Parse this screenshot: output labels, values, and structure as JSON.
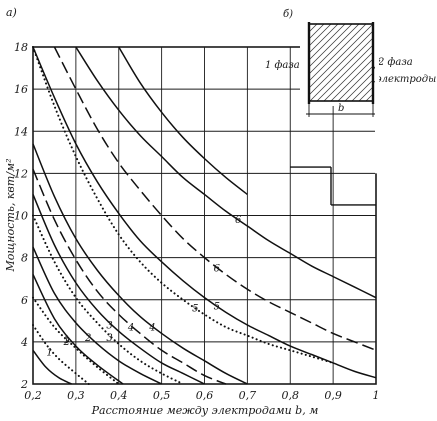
{
  "chart_data": {
    "type": "line",
    "panel_label": "а)",
    "xlabel": "Расстояние между электродами b, м",
    "ylabel": "Мощность, квт/м²",
    "xlim": [
      0.2,
      1.0
    ],
    "ylim": [
      2,
      18
    ],
    "grid": true,
    "x_tick_labels": [
      "0,2",
      "0,3",
      "0,4",
      "0,5",
      "0,6",
      "0,7",
      "0,8",
      "0,9",
      "1"
    ],
    "y_tick_labels": [
      "2",
      "4",
      "6",
      "8",
      "10",
      "12",
      "14",
      "16",
      "18"
    ],
    "series": [
      {
        "label": "1",
        "style": "dotted",
        "x": [
          0.2,
          0.23,
          0.26,
          0.3,
          0.33
        ],
        "y": [
          4.8,
          3.9,
          3.2,
          2.5,
          2.0
        ]
      },
      {
        "label": "2",
        "style": "dotted",
        "x": [
          0.2,
          0.25,
          0.3,
          0.35,
          0.4
        ],
        "y": [
          6.1,
          4.7,
          3.7,
          2.8,
          2.0
        ]
      },
      {
        "label": "1",
        "style": "solid",
        "x": [
          0.2,
          0.25,
          0.3,
          0.35,
          0.41
        ],
        "y": [
          7.2,
          5.1,
          3.8,
          2.9,
          2.0
        ]
      },
      {
        "label": "2",
        "style": "solid",
        "x": [
          0.2,
          0.25,
          0.3,
          0.35,
          0.4,
          0.45,
          0.5
        ],
        "y": [
          8.5,
          6.3,
          4.9,
          3.9,
          3.1,
          2.5,
          2.0
        ]
      },
      {
        "label": "3",
        "style": "dotted",
        "x": [
          0.2,
          0.25,
          0.3,
          0.35,
          0.4,
          0.45,
          0.5,
          0.55
        ],
        "y": [
          10.0,
          7.8,
          6.1,
          4.9,
          3.9,
          3.1,
          2.5,
          2.0
        ]
      },
      {
        "label": "3",
        "style": "solid",
        "x": [
          0.2,
          0.25,
          0.3,
          0.35,
          0.4,
          0.45,
          0.5,
          0.55,
          0.6
        ],
        "y": [
          11.0,
          8.6,
          6.8,
          5.5,
          4.5,
          3.7,
          3.0,
          2.5,
          2.0
        ]
      },
      {
        "label": "4",
        "style": "dashed",
        "x": [
          0.2,
          0.25,
          0.3,
          0.35,
          0.4,
          0.45,
          0.5,
          0.55,
          0.6,
          0.65
        ],
        "y": [
          12.2,
          9.8,
          7.9,
          6.4,
          5.3,
          4.4,
          3.6,
          3.0,
          2.4,
          2.0
        ]
      },
      {
        "label": "4",
        "style": "solid",
        "x": [
          0.2,
          0.25,
          0.3,
          0.35,
          0.4,
          0.45,
          0.5,
          0.55,
          0.6,
          0.65,
          0.7
        ],
        "y": [
          13.4,
          10.9,
          8.9,
          7.4,
          6.2,
          5.2,
          4.4,
          3.7,
          3.1,
          2.5,
          2.0
        ]
      },
      {
        "label": "5",
        "style": "dotted",
        "x": [
          0.2,
          0.25,
          0.3,
          0.35,
          0.4,
          0.45,
          0.5,
          0.55,
          0.6,
          0.65,
          0.7,
          0.75,
          0.8,
          0.85,
          0.9
        ],
        "y": [
          18.0,
          15.2,
          12.8,
          10.8,
          9.1,
          7.8,
          6.8,
          6.0,
          5.3,
          4.7,
          4.3,
          3.9,
          3.6,
          3.3,
          3.0
        ]
      },
      {
        "label": "5",
        "style": "solid",
        "x": [
          0.2,
          0.25,
          0.3,
          0.35,
          0.4,
          0.45,
          0.5,
          0.55,
          0.6,
          0.65,
          0.7,
          0.75,
          0.8,
          0.85,
          0.9,
          0.95,
          1.0
        ],
        "y": [
          18.0,
          15.6,
          13.4,
          11.6,
          10.1,
          8.8,
          7.8,
          6.9,
          6.1,
          5.4,
          4.8,
          4.3,
          3.8,
          3.4,
          3.0,
          2.6,
          2.3
        ]
      },
      {
        "label": "6",
        "style": "dashed",
        "x": [
          0.25,
          0.3,
          0.35,
          0.4,
          0.45,
          0.5,
          0.55,
          0.6,
          0.65,
          0.7,
          0.75,
          0.8,
          0.85,
          0.9,
          0.95,
          1.0
        ],
        "y": [
          18.0,
          16.0,
          14.1,
          12.5,
          11.2,
          10.0,
          8.9,
          8.0,
          7.2,
          6.5,
          5.9,
          5.4,
          4.9,
          4.4,
          4.0,
          3.6
        ]
      },
      {
        "label": "6",
        "style": "solid",
        "x": [
          0.3,
          0.35,
          0.4,
          0.45,
          0.5,
          0.55,
          0.6,
          0.65,
          0.7,
          0.75,
          0.8,
          0.85,
          0.9,
          0.95,
          1.0
        ],
        "y": [
          18.0,
          16.4,
          15.0,
          13.8,
          12.8,
          11.8,
          11.0,
          10.2,
          9.5,
          8.8,
          8.2,
          7.6,
          7.1,
          6.6,
          6.1
        ]
      }
    ],
    "extra_solid_curves": [
      {
        "x": [
          0.2,
          0.23,
          0.26,
          0.29
        ],
        "y": [
          3.6,
          2.8,
          2.3,
          2.0
        ]
      },
      {
        "x": [
          0.4,
          0.45,
          0.5,
          0.55,
          0.6,
          0.65,
          0.7
        ],
        "y": [
          18.0,
          16.3,
          14.9,
          13.7,
          12.7,
          11.8,
          11.0
        ]
      }
    ],
    "inset": {
      "panel_label": "б)",
      "phase1_label": "1 фаза",
      "phase2_label": "2 фаза",
      "electrodes_label": "электроды",
      "dimension_label": "b"
    }
  }
}
